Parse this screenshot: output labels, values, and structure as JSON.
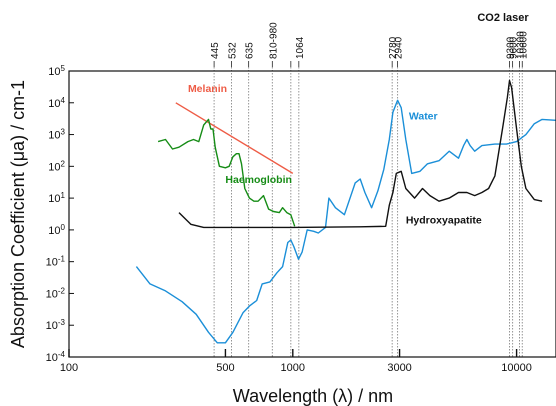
{
  "chart_data": {
    "type": "line",
    "title": "",
    "xlabel": "Wavelength (λ) / nm",
    "ylabel": "Absorption Coefficient (μa) / cm-1",
    "x_scale": "log",
    "y_scale": "log",
    "xlim": [
      100,
      15000
    ],
    "ylim": [
      0.0001,
      100000
    ],
    "x_ticks": [
      {
        "value": 100,
        "label": "100"
      },
      {
        "value": 500,
        "label": "500"
      },
      {
        "value": 1000,
        "label": "1000"
      },
      {
        "value": 3000,
        "label": "3000"
      },
      {
        "value": 10000,
        "label": "10000"
      }
    ],
    "y_ticks": [
      {
        "value": 0.0001,
        "base": "10",
        "exp": "-4"
      },
      {
        "value": 0.001,
        "base": "10",
        "exp": "-3"
      },
      {
        "value": 0.01,
        "base": "10",
        "exp": "-2"
      },
      {
        "value": 0.1,
        "base": "10",
        "exp": "-1"
      },
      {
        "value": 1,
        "base": "10",
        "exp": "0"
      },
      {
        "value": 10,
        "base": "10",
        "exp": "1"
      },
      {
        "value": 100,
        "base": "10",
        "exp": "2"
      },
      {
        "value": 1000,
        "base": "10",
        "exp": "3"
      },
      {
        "value": 10000,
        "base": "10",
        "exp": "4"
      },
      {
        "value": 100000,
        "base": "10",
        "exp": "5"
      }
    ],
    "laser_lines": [
      {
        "x": 445,
        "label": "445"
      },
      {
        "x": 532,
        "label": "532"
      },
      {
        "x": 635,
        "label": "635"
      },
      {
        "x": 810,
        "label": "810-980"
      },
      {
        "x": 980,
        "label": ""
      },
      {
        "x": 1064,
        "label": "1064"
      },
      {
        "x": 2780,
        "label": "2780"
      },
      {
        "x": 2940,
        "label": "2940"
      },
      {
        "x": 9300,
        "label": "9300"
      },
      {
        "x": 9600,
        "label": "9600"
      },
      {
        "x": 10300,
        "label": "10300"
      },
      {
        "x": 10600,
        "label": "10600"
      }
    ],
    "laser_group_label": "CO2 laser",
    "series": [
      {
        "name": "Water",
        "color": "#1b8fd8",
        "points": [
          [
            200,
            0.07
          ],
          [
            230,
            0.02
          ],
          [
            270,
            0.012
          ],
          [
            320,
            0.0055
          ],
          [
            370,
            0.0022
          ],
          [
            420,
            0.0006
          ],
          [
            460,
            0.00028
          ],
          [
            500,
            0.00028
          ],
          [
            540,
            0.0006
          ],
          [
            600,
            0.0025
          ],
          [
            640,
            0.004
          ],
          [
            690,
            0.006
          ],
          [
            730,
            0.02
          ],
          [
            790,
            0.023
          ],
          [
            850,
            0.045
          ],
          [
            900,
            0.07
          ],
          [
            950,
            0.4
          ],
          [
            980,
            0.48
          ],
          [
            1010,
            0.3
          ],
          [
            1060,
            0.12
          ],
          [
            1100,
            0.2
          ],
          [
            1160,
            1.0
          ],
          [
            1240,
            0.9
          ],
          [
            1300,
            0.8
          ],
          [
            1400,
            1.2
          ],
          [
            1450,
            10
          ],
          [
            1550,
            5
          ],
          [
            1700,
            3
          ],
          [
            1900,
            30
          ],
          [
            2000,
            40
          ],
          [
            2100,
            15
          ],
          [
            2250,
            5
          ],
          [
            2400,
            17
          ],
          [
            2550,
            80
          ],
          [
            2700,
            700
          ],
          [
            2800,
            5000
          ],
          [
            2940,
            12000
          ],
          [
            3050,
            7000
          ],
          [
            3200,
            700
          ],
          [
            3400,
            60
          ],
          [
            3700,
            70
          ],
          [
            4000,
            120
          ],
          [
            4500,
            150
          ],
          [
            5000,
            300
          ],
          [
            5500,
            180
          ],
          [
            5800,
            450
          ],
          [
            6000,
            700
          ],
          [
            6200,
            450
          ],
          [
            6500,
            300
          ],
          [
            7000,
            450
          ],
          [
            8000,
            500
          ],
          [
            9000,
            500
          ],
          [
            10000,
            600
          ],
          [
            11000,
            1000
          ],
          [
            12000,
            2200
          ],
          [
            13000,
            3000
          ],
          [
            15000,
            2800
          ]
        ]
      },
      {
        "name": "Melanin",
        "color": "#ee5c46",
        "points": [
          [
            300,
            10000
          ],
          [
            1000,
            60
          ]
        ]
      },
      {
        "name": "Haemoglobin",
        "color": "#168c16",
        "points": [
          [
            250,
            600
          ],
          [
            270,
            700
          ],
          [
            290,
            350
          ],
          [
            310,
            400
          ],
          [
            340,
            600
          ],
          [
            360,
            700
          ],
          [
            380,
            600
          ],
          [
            400,
            2000
          ],
          [
            420,
            3000
          ],
          [
            430,
            1500
          ],
          [
            440,
            1500
          ],
          [
            450,
            400
          ],
          [
            470,
            100
          ],
          [
            500,
            90
          ],
          [
            520,
            100
          ],
          [
            540,
            200
          ],
          [
            560,
            250
          ],
          [
            575,
            250
          ],
          [
            590,
            120
          ],
          [
            610,
            20
          ],
          [
            640,
            10
          ],
          [
            670,
            8
          ],
          [
            700,
            8
          ],
          [
            740,
            12
          ],
          [
            780,
            4.5
          ],
          [
            820,
            3.8
          ],
          [
            870,
            3.5
          ],
          [
            900,
            5
          ],
          [
            940,
            3.5
          ],
          [
            980,
            3
          ],
          [
            1020,
            1.3
          ]
        ]
      },
      {
        "name": "Hydroxyapatite",
        "color": "#111111",
        "points": [
          [
            310,
            3.5
          ],
          [
            350,
            1.5
          ],
          [
            400,
            1.2
          ],
          [
            600,
            1.2
          ],
          [
            1000,
            1.2
          ],
          [
            2000,
            1.25
          ],
          [
            2600,
            1.3
          ],
          [
            2700,
            6
          ],
          [
            2800,
            15
          ],
          [
            2900,
            60
          ],
          [
            3050,
            70
          ],
          [
            3200,
            20
          ],
          [
            3500,
            10
          ],
          [
            3800,
            20
          ],
          [
            4100,
            12
          ],
          [
            4500,
            8
          ],
          [
            5000,
            10
          ],
          [
            5500,
            15
          ],
          [
            6000,
            15
          ],
          [
            6500,
            12
          ],
          [
            7000,
            15
          ],
          [
            7500,
            20
          ],
          [
            8000,
            50
          ],
          [
            8700,
            2000
          ],
          [
            9100,
            15000
          ],
          [
            9300,
            50000
          ],
          [
            9500,
            30000
          ],
          [
            10000,
            1500
          ],
          [
            10500,
            100
          ],
          [
            11000,
            20
          ],
          [
            12000,
            9
          ],
          [
            13000,
            8
          ]
        ]
      }
    ],
    "annotations": [
      {
        "series": "Melanin",
        "text": "Melanin",
        "x": 340,
        "y": 22000,
        "color": "#ee5c46"
      },
      {
        "series": "Water",
        "text": "Water",
        "x": 3300,
        "y": 3000,
        "color": "#1b8fd8"
      },
      {
        "series": "Haemoglobin",
        "text": "Haemoglobin",
        "x": 500,
        "y": 30,
        "color": "#168c16"
      },
      {
        "series": "Hydroxyapatite",
        "text": "Hydroxyapatite",
        "x": 3200,
        "y": 1.6,
        "color": "#111111"
      }
    ],
    "grid": false,
    "legend": "none"
  }
}
